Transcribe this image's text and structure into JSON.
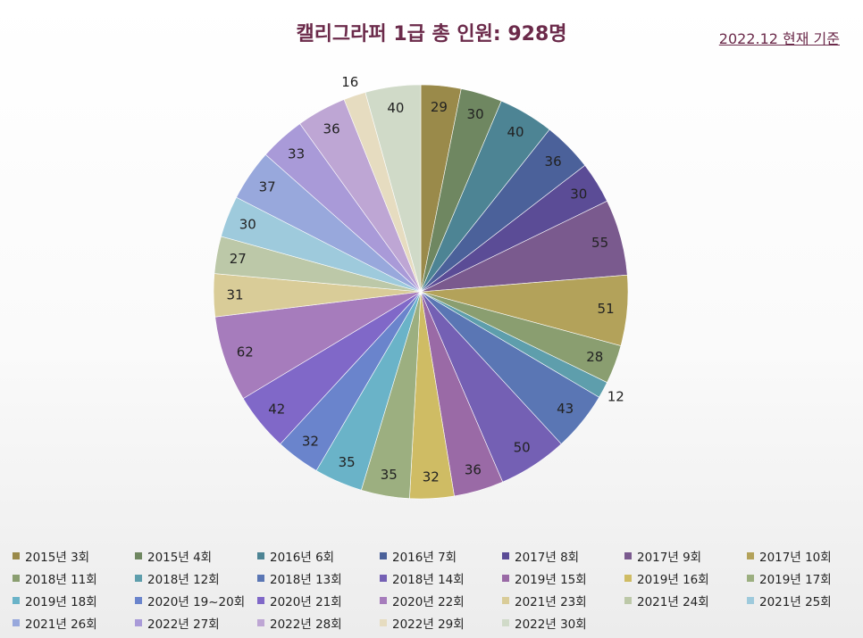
{
  "title": "캘리그라퍼 1급 총 인원: 928명",
  "basis_note": "2022.12 현재 기준",
  "chart_data": {
    "type": "pie",
    "title": "캘리그라퍼 1급 총 인원: 928명",
    "legend_position": "bottom",
    "start_angle_deg": 0,
    "direction": "clockwise",
    "slices": [
      {
        "label": "2015년 3회",
        "value": 29,
        "color": "#9a8a4a"
      },
      {
        "label": "2015년 4회",
        "value": 30,
        "color": "#6f8761"
      },
      {
        "label": "2016년 6회",
        "value": 40,
        "color": "#4d8494"
      },
      {
        "label": "2016년 7회",
        "value": 36,
        "color": "#4b619a"
      },
      {
        "label": "2017년 8회",
        "value": 30,
        "color": "#5b4c96"
      },
      {
        "label": "2017년 9회",
        "value": 55,
        "color": "#7a5a8e"
      },
      {
        "label": "2017년 10회",
        "value": 51,
        "color": "#b3a25a"
      },
      {
        "label": "2018년 11회",
        "value": 28,
        "color": "#8a9e70"
      },
      {
        "label": "2018년 12회",
        "value": 12,
        "color": "#5e9eac"
      },
      {
        "label": "2018년 13회",
        "value": 43,
        "color": "#5a76b4"
      },
      {
        "label": "2018년 14회",
        "value": 50,
        "color": "#7460b4"
      },
      {
        "label": "2019년 15회",
        "value": 36,
        "color": "#9a6aa6"
      },
      {
        "label": "2019년 16회",
        "value": 32,
        "color": "#cfbc64"
      },
      {
        "label": "2019년 17회",
        "value": 35,
        "color": "#9caf80"
      },
      {
        "label": "2019년 18회",
        "value": 35,
        "color": "#6ab3c8"
      },
      {
        "label": "2020년 19~20회",
        "value": 32,
        "color": "#6a84cc"
      },
      {
        "label": "2020년 21회",
        "value": 42,
        "color": "#8068c8"
      },
      {
        "label": "2020년 22회",
        "value": 62,
        "color": "#a67cbc"
      },
      {
        "label": "2021년 23회",
        "value": 31,
        "color": "#d9cc98"
      },
      {
        "label": "2021년 24회",
        "value": 27,
        "color": "#bcc8a8"
      },
      {
        "label": "2021년 25회",
        "value": 30,
        "color": "#9ecadc"
      },
      {
        "label": "2021년 26회",
        "value": 37,
        "color": "#98a8dc"
      },
      {
        "label": "2022년 27회",
        "value": 33,
        "color": "#a99ad8"
      },
      {
        "label": "2022년 28회",
        "value": 36,
        "color": "#bea6d4"
      },
      {
        "label": "2022년 29회",
        "value": 16,
        "color": "#e6dcc0"
      },
      {
        "label": "2022년 30회",
        "value": 40,
        "color": "#d0dac8"
      }
    ]
  }
}
